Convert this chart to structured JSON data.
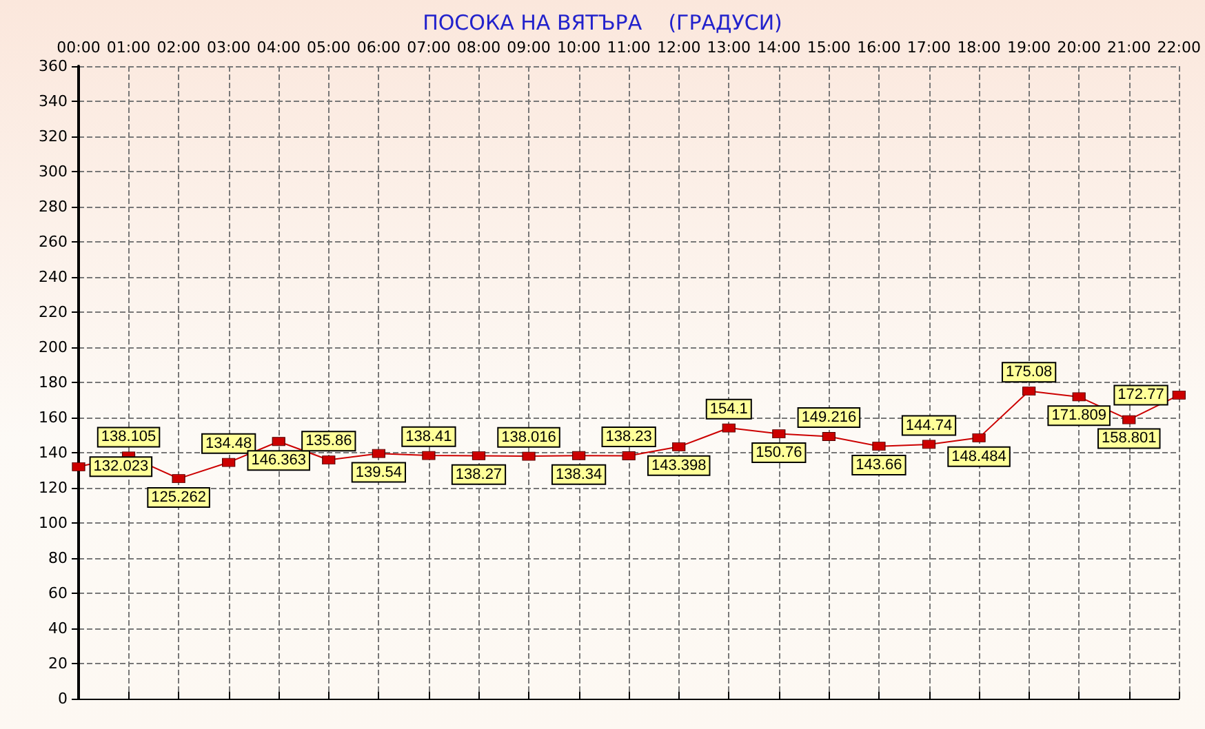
{
  "chart_data": {
    "type": "line",
    "title": "ПОСОКА НА ВЯТЪРА    (ГРАДУСИ)",
    "categories": [
      "00:00",
      "01:00",
      "02:00",
      "03:00",
      "04:00",
      "05:00",
      "06:00",
      "07:00",
      "08:00",
      "09:00",
      "10:00",
      "11:00",
      "12:00",
      "13:00",
      "14:00",
      "15:00",
      "16:00",
      "17:00",
      "18:00",
      "19:00",
      "20:00",
      "21:00",
      "22:00"
    ],
    "series": [
      {
        "color": "#cc0000",
        "values": [
          132.023,
          138.105,
          125.262,
          134.48,
          146.363,
          135.86,
          139.54,
          138.41,
          138.27,
          138.016,
          138.34,
          138.23,
          143.398,
          154.1,
          150.76,
          149.216,
          143.66,
          144.74,
          148.484,
          175.08,
          171.809,
          158.801,
          172.77
        ]
      }
    ],
    "ylim": [
      0,
      360
    ],
    "yticks": [
      0,
      20,
      40,
      60,
      80,
      100,
      120,
      140,
      160,
      180,
      200,
      220,
      240,
      260,
      280,
      300,
      320,
      340,
      360
    ],
    "grid": true,
    "marker": "square",
    "line_style": "solid",
    "data_labels": true
  }
}
